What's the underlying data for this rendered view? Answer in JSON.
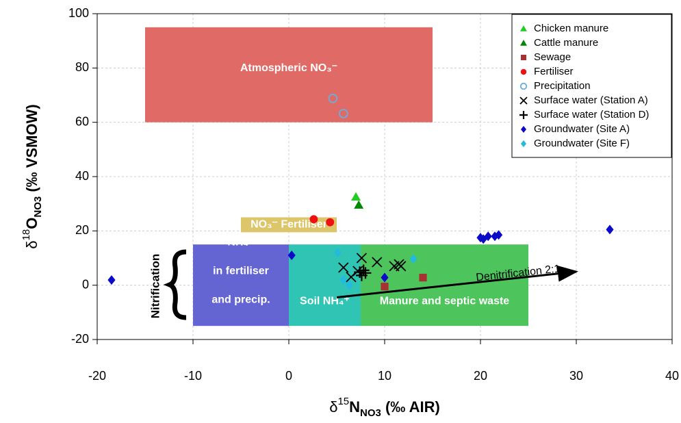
{
  "chart_data": {
    "type": "scatter",
    "xlabel": [
      "δ",
      "15",
      "N",
      "NO3",
      " (‰ AIR)"
    ],
    "ylabel": [
      "δ",
      "18",
      "O",
      "NO3",
      " (‰ VSMOW)"
    ],
    "xlim": [
      -20,
      40
    ],
    "xticks": [
      -20,
      -10,
      0,
      10,
      20,
      30,
      40
    ],
    "ylim": [
      -20,
      100
    ],
    "yticks": [
      -20,
      0,
      20,
      40,
      60,
      80,
      100
    ],
    "grid": true,
    "legend": "upper right",
    "regions": [
      {
        "label": [
          "Atmospheric NO₃⁻"
        ],
        "x": [
          -15,
          15
        ],
        "y": [
          60,
          95
        ],
        "color": "#e06a66"
      },
      {
        "label": [
          "NO₃⁻ Fertiliser"
        ],
        "x": [
          -5,
          5
        ],
        "y": [
          19.5,
          25
        ],
        "color": "#ddc56a"
      },
      {
        "label": [
          "NH₄⁺",
          "in fertiliser",
          "and precip."
        ],
        "x": [
          -10,
          0
        ],
        "y": [
          -15,
          15
        ],
        "color": "#6464d2"
      },
      {
        "label": [
          "Soil NH₄⁺"
        ],
        "x": [
          0,
          7.5
        ],
        "y": [
          -15,
          15
        ],
        "color": "#30c4b4"
      },
      {
        "label": [
          "Manure and septic waste"
        ],
        "x": [
          7.5,
          25
        ],
        "y": [
          -15,
          15
        ],
        "color": "#4ec45c"
      }
    ],
    "side_label": "Nitrification",
    "arrow": {
      "label": "Denitrification 2:1",
      "x": [
        5,
        30
      ],
      "y": [
        -4.5,
        5
      ]
    },
    "series": [
      {
        "name": "Chicken manure",
        "color": "#22cc22",
        "marker": "triangle",
        "x": [
          7.0
        ],
        "values": [
          32.5
        ]
      },
      {
        "name": "Cattle manure",
        "color": "#008800",
        "marker": "triangle",
        "x": [
          7.3
        ],
        "values": [
          29.5
        ]
      },
      {
        "name": "Sewage",
        "color": "#a83232",
        "marker": "square",
        "x": [
          10,
          14
        ],
        "values": [
          -0.5,
          2.8
        ]
      },
      {
        "name": "Fertiliser",
        "color": "#ee1111",
        "marker": "circle",
        "x": [
          2.6,
          4.3
        ],
        "values": [
          24.3,
          23.2
        ]
      },
      {
        "name": "Precipitation",
        "color": "#6aaede",
        "marker": "open-circle",
        "x": [
          4.6,
          5.7
        ],
        "values": [
          68.8,
          63.2
        ]
      },
      {
        "name": "Surface water (Station A)",
        "color": "#000000",
        "marker": "x",
        "x": [
          5.7,
          6.5,
          7.2,
          7.6,
          9.2,
          11.0,
          11.5,
          11.7
        ],
        "values": [
          6.5,
          3.0,
          5.2,
          10.0,
          8.5,
          7.0,
          7.7,
          7.0
        ]
      },
      {
        "name": "Surface water (Station D)",
        "color": "#000000",
        "marker": "plus",
        "x": [
          7.4,
          7.8,
          8.0,
          7.6
        ],
        "values": [
          4.8,
          5.5,
          4.5,
          3.6
        ]
      },
      {
        "name": "Groundwater (Site A)",
        "color": "#0a0ac8",
        "marker": "diamond",
        "x": [
          -18.5,
          0.3,
          10,
          20,
          20.3,
          20.8,
          21.5,
          21.9,
          33.5
        ],
        "values": [
          1.9,
          11,
          2.8,
          17.5,
          17,
          18,
          18,
          18.5,
          20.5
        ]
      },
      {
        "name": "Groundwater (Site F)",
        "color": "#22bbdd",
        "marker": "diamond",
        "x": [
          5.1,
          5.7,
          6.3,
          13
        ],
        "values": [
          12,
          2,
          0,
          9.7
        ]
      }
    ]
  }
}
